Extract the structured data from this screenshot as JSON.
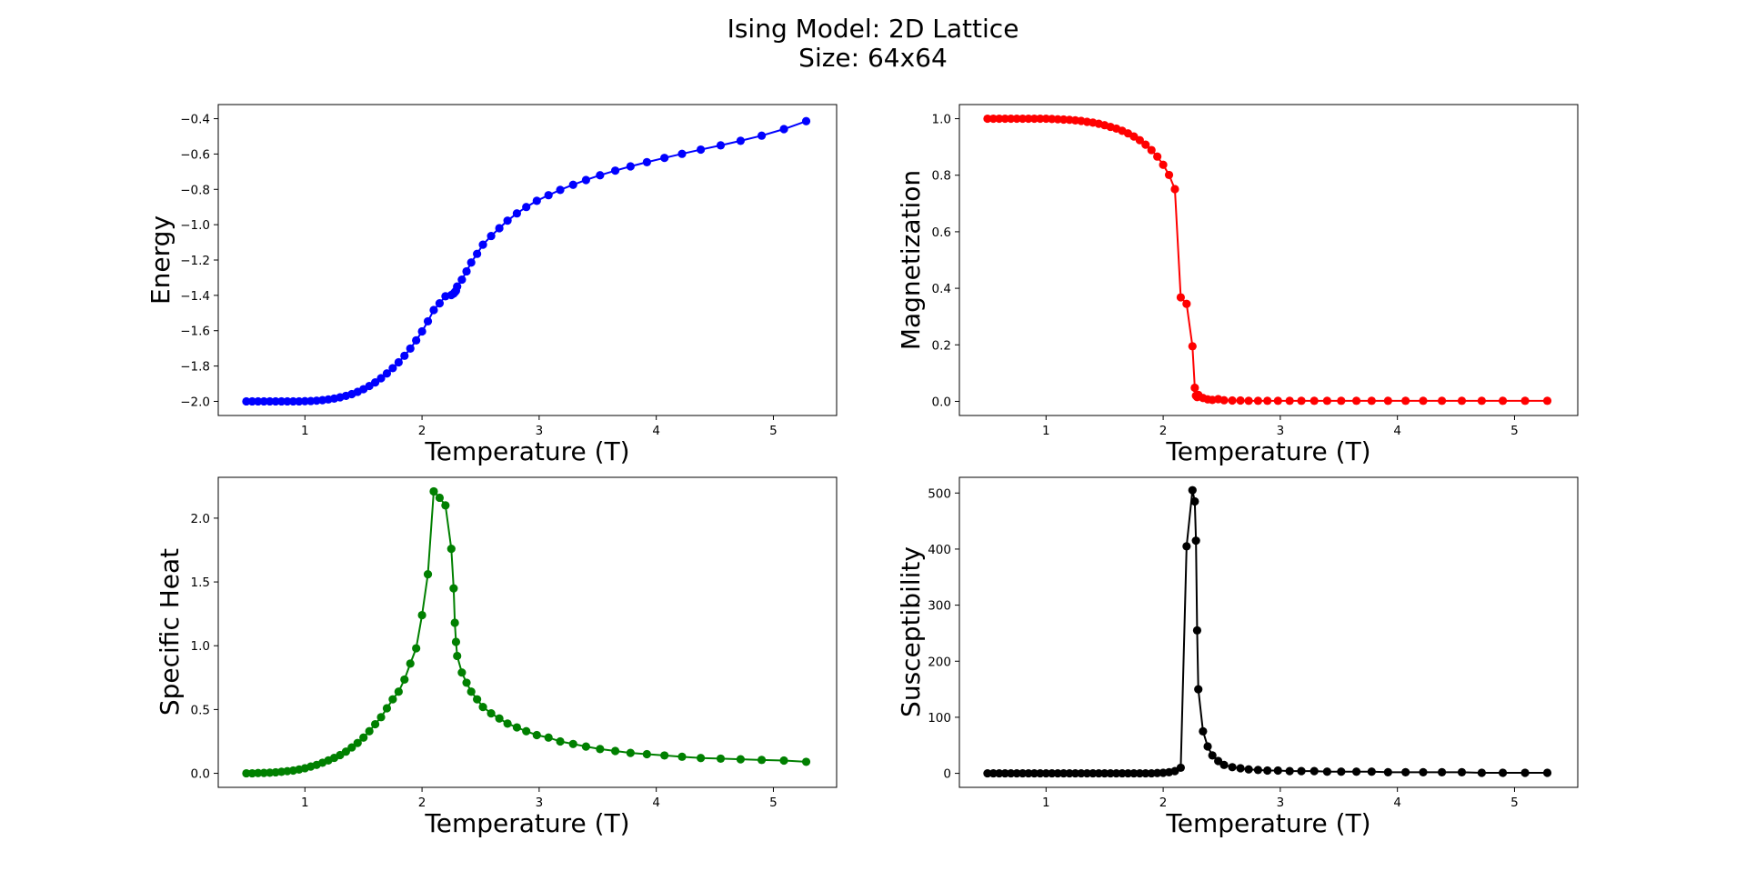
{
  "figure": {
    "title_line1": "Ising Model: 2D Lattice",
    "title_line2": "Size: 64x64"
  },
  "chart_data": [
    {
      "type": "line",
      "name": "energy",
      "color": "#0000ff",
      "xlabel": "Temperature (T)",
      "ylabel": "Energy",
      "xlim": [
        0.26,
        5.54
      ],
      "ylim": [
        -2.08,
        -0.32
      ],
      "xticks": [
        1,
        2,
        3,
        4,
        5
      ],
      "yticks": [
        -2.0,
        -1.8,
        -1.6,
        -1.4,
        -1.2,
        -1.0,
        -0.8,
        -0.6,
        -0.4
      ],
      "ytick_decimals": 1,
      "x": [
        0.5,
        0.55,
        0.6,
        0.65,
        0.7,
        0.75,
        0.8,
        0.85,
        0.9,
        0.95,
        1.0,
        1.05,
        1.1,
        1.15,
        1.2,
        1.25,
        1.3,
        1.35,
        1.4,
        1.45,
        1.5,
        1.55,
        1.6,
        1.65,
        1.7,
        1.75,
        1.8,
        1.85,
        1.9,
        1.95,
        2.0,
        2.05,
        2.1,
        2.15,
        2.2,
        2.25,
        2.27,
        2.28,
        2.29,
        2.3,
        2.34,
        2.38,
        2.42,
        2.47,
        2.52,
        2.59,
        2.66,
        2.73,
        2.81,
        2.89,
        2.98,
        3.08,
        3.18,
        3.29,
        3.4,
        3.52,
        3.65,
        3.78,
        3.92,
        4.07,
        4.22,
        4.38,
        4.55,
        4.72,
        4.9,
        5.09,
        5.28
      ],
      "y": [
        -2.0,
        -2.0,
        -2.0,
        -2.0,
        -2.0,
        -2.0,
        -2.0,
        -2.0,
        -2.0,
        -2.0,
        -1.999,
        -1.998,
        -1.996,
        -1.993,
        -1.989,
        -1.984,
        -1.977,
        -1.969,
        -1.959,
        -1.946,
        -1.931,
        -1.913,
        -1.893,
        -1.869,
        -1.842,
        -1.812,
        -1.779,
        -1.742,
        -1.701,
        -1.655,
        -1.604,
        -1.547,
        -1.483,
        -1.445,
        -1.405,
        -1.398,
        -1.39,
        -1.382,
        -1.374,
        -1.35,
        -1.311,
        -1.264,
        -1.214,
        -1.165,
        -1.113,
        -1.064,
        -1.02,
        -0.977,
        -0.936,
        -0.9,
        -0.865,
        -0.833,
        -0.803,
        -0.774,
        -0.747,
        -0.72,
        -0.694,
        -0.67,
        -0.646,
        -0.622,
        -0.599,
        -0.575,
        -0.551,
        -0.525,
        -0.496,
        -0.459,
        -0.414
      ]
    },
    {
      "type": "line",
      "name": "magnetization",
      "color": "#ff0000",
      "xlabel": "Temperature (T)",
      "ylabel": "Magnetization",
      "xlim": [
        0.26,
        5.54
      ],
      "ylim": [
        -0.05,
        1.05
      ],
      "xticks": [
        1,
        2,
        3,
        4,
        5
      ],
      "yticks": [
        0.0,
        0.2,
        0.4,
        0.6,
        0.8,
        1.0
      ],
      "ytick_decimals": 1,
      "x": [
        0.5,
        0.55,
        0.6,
        0.65,
        0.7,
        0.75,
        0.8,
        0.85,
        0.9,
        0.95,
        1.0,
        1.05,
        1.1,
        1.15,
        1.2,
        1.25,
        1.3,
        1.35,
        1.4,
        1.45,
        1.5,
        1.55,
        1.6,
        1.65,
        1.7,
        1.75,
        1.8,
        1.85,
        1.9,
        1.95,
        2.0,
        2.05,
        2.1,
        2.15,
        2.2,
        2.25,
        2.27,
        2.28,
        2.29,
        2.3,
        2.34,
        2.38,
        2.42,
        2.47,
        2.52,
        2.59,
        2.66,
        2.73,
        2.81,
        2.89,
        2.98,
        3.08,
        3.18,
        3.29,
        3.4,
        3.52,
        3.65,
        3.78,
        3.92,
        4.07,
        4.22,
        4.38,
        4.55,
        4.72,
        4.9,
        5.09,
        5.28
      ],
      "y": [
        1.0,
        1.0,
        1.0,
        1.0,
        1.0,
        1.0,
        1.0,
        1.0,
        1.0,
        1.0,
        1.0,
        0.999,
        0.998,
        0.997,
        0.996,
        0.994,
        0.992,
        0.989,
        0.986,
        0.982,
        0.977,
        0.971,
        0.965,
        0.957,
        0.948,
        0.937,
        0.924,
        0.908,
        0.889,
        0.866,
        0.837,
        0.801,
        0.751,
        0.368,
        0.345,
        0.195,
        0.048,
        0.02,
        0.015,
        0.023,
        0.012,
        0.007,
        0.005,
        0.008,
        0.004,
        0.003,
        0.003,
        0.002,
        0.002,
        0.002,
        0.002,
        0.002,
        0.002,
        0.002,
        0.002,
        0.002,
        0.002,
        0.002,
        0.002,
        0.002,
        0.002,
        0.002,
        0.002,
        0.002,
        0.002,
        0.002,
        0.002
      ]
    },
    {
      "type": "line",
      "name": "specific-heat",
      "color": "#008000",
      "xlabel": "Temperature (T)",
      "ylabel": "Specific Heat",
      "xlim": [
        0.26,
        5.54
      ],
      "ylim": [
        -0.11,
        2.32
      ],
      "xticks": [
        1,
        2,
        3,
        4,
        5
      ],
      "yticks": [
        0.0,
        0.5,
        1.0,
        1.5,
        2.0
      ],
      "ytick_decimals": 1,
      "x": [
        0.5,
        0.55,
        0.6,
        0.65,
        0.7,
        0.75,
        0.8,
        0.85,
        0.9,
        0.95,
        1.0,
        1.05,
        1.1,
        1.15,
        1.2,
        1.25,
        1.3,
        1.35,
        1.4,
        1.45,
        1.5,
        1.55,
        1.6,
        1.65,
        1.7,
        1.75,
        1.8,
        1.85,
        1.9,
        1.95,
        2.0,
        2.05,
        2.1,
        2.15,
        2.2,
        2.25,
        2.27,
        2.28,
        2.29,
        2.3,
        2.34,
        2.38,
        2.42,
        2.47,
        2.52,
        2.59,
        2.66,
        2.73,
        2.81,
        2.89,
        2.98,
        3.08,
        3.18,
        3.29,
        3.4,
        3.52,
        3.65,
        3.78,
        3.92,
        4.07,
        4.22,
        4.38,
        4.55,
        4.72,
        4.9,
        5.09,
        5.28
      ],
      "y": [
        0.0,
        0.0,
        0.002,
        0.003,
        0.005,
        0.008,
        0.012,
        0.017,
        0.022,
        0.03,
        0.04,
        0.053,
        0.066,
        0.083,
        0.101,
        0.121,
        0.143,
        0.17,
        0.203,
        0.238,
        0.28,
        0.33,
        0.385,
        0.44,
        0.51,
        0.58,
        0.64,
        0.735,
        0.86,
        0.98,
        1.24,
        1.56,
        2.21,
        2.16,
        2.1,
        1.76,
        1.45,
        1.18,
        1.03,
        0.92,
        0.79,
        0.71,
        0.64,
        0.58,
        0.52,
        0.47,
        0.43,
        0.39,
        0.36,
        0.33,
        0.3,
        0.28,
        0.25,
        0.23,
        0.21,
        0.19,
        0.175,
        0.16,
        0.15,
        0.14,
        0.13,
        0.12,
        0.115,
        0.11,
        0.105,
        0.1,
        0.09
      ]
    },
    {
      "type": "line",
      "name": "susceptibility",
      "color": "#000000",
      "xlabel": "Temperature (T)",
      "ylabel": "Susceptibility",
      "xlim": [
        0.26,
        5.54
      ],
      "ylim": [
        -25,
        528
      ],
      "xticks": [
        1,
        2,
        3,
        4,
        5
      ],
      "yticks": [
        0,
        100,
        200,
        300,
        400,
        500
      ],
      "ytick_decimals": 0,
      "x": [
        0.5,
        0.55,
        0.6,
        0.65,
        0.7,
        0.75,
        0.8,
        0.85,
        0.9,
        0.95,
        1.0,
        1.05,
        1.1,
        1.15,
        1.2,
        1.25,
        1.3,
        1.35,
        1.4,
        1.45,
        1.5,
        1.55,
        1.6,
        1.65,
        1.7,
        1.75,
        1.8,
        1.85,
        1.9,
        1.95,
        2.0,
        2.05,
        2.1,
        2.15,
        2.2,
        2.25,
        2.27,
        2.28,
        2.29,
        2.3,
        2.34,
        2.38,
        2.42,
        2.47,
        2.52,
        2.59,
        2.66,
        2.73,
        2.81,
        2.89,
        2.98,
        3.08,
        3.18,
        3.29,
        3.4,
        3.52,
        3.65,
        3.78,
        3.92,
        4.07,
        4.22,
        4.38,
        4.55,
        4.72,
        4.9,
        5.09,
        5.28
      ],
      "y": [
        0,
        0,
        0,
        0,
        0,
        0,
        0,
        0,
        0,
        0,
        0,
        0,
        0,
        0,
        0,
        0,
        0,
        0,
        0,
        0,
        0,
        0,
        0,
        0,
        0,
        0,
        0,
        0,
        0,
        0.5,
        1,
        2,
        4,
        10,
        405,
        505,
        485,
        415,
        255,
        150,
        75,
        48,
        32,
        22,
        15,
        11,
        9,
        7,
        6,
        5,
        5,
        4,
        4,
        4,
        3,
        3,
        3,
        3,
        2,
        2,
        2,
        2,
        2,
        1,
        1,
        1,
        1
      ]
    }
  ]
}
